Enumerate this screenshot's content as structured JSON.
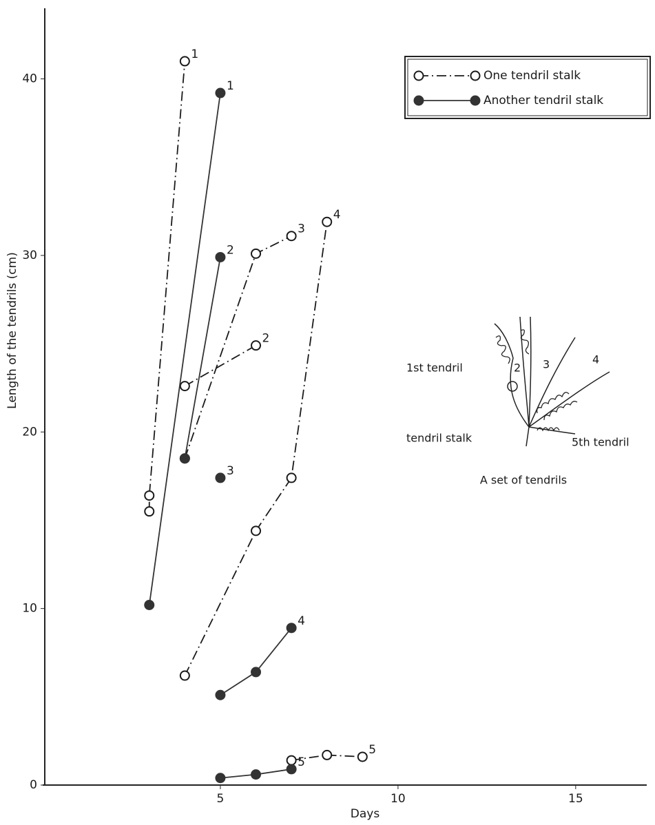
{
  "chart_data": {
    "type": "line",
    "x_label": "Days",
    "y_label": "Length of the tendrils (cm)",
    "xlim": [
      0,
      17
    ],
    "xticks": [
      5,
      10,
      15
    ],
    "ylim": [
      0,
      44
    ],
    "yticks": [
      0,
      10,
      20,
      30,
      40
    ],
    "grid": false,
    "legend": "upper right",
    "series": [
      {
        "name": "One tendril stalk",
        "color": "#1a1a1a",
        "marker": "open",
        "linestyle": "dashdot",
        "tendrils": [
          {
            "label": "1",
            "x": [
              3,
              3,
              4
            ],
            "values": [
              15.5,
              16.4,
              41
            ]
          },
          {
            "label": "2",
            "x": [
              4,
              6
            ],
            "values": [
              22.6,
              24.9
            ]
          },
          {
            "label": "3",
            "x": [
              4,
              6,
              7
            ],
            "values": [
              18.5,
              30.1,
              31.1
            ]
          },
          {
            "label": "4",
            "x": [
              4,
              6,
              7,
              8
            ],
            "values": [
              6.2,
              14.4,
              17.4,
              31.9
            ]
          },
          {
            "label": "5",
            "x": [
              7,
              8,
              9
            ],
            "values": [
              1.4,
              1.7,
              1.6
            ]
          }
        ]
      },
      {
        "name": "Another tendril stalk",
        "color": "#333333",
        "marker": "filled",
        "linestyle": "solid",
        "tendrils": [
          {
            "label": "1",
            "x": [
              3,
              5
            ],
            "values": [
              10.2,
              39.2
            ]
          },
          {
            "label": "2",
            "x": [
              4,
              5
            ],
            "values": [
              18.5,
              29.9
            ]
          },
          {
            "label": "3",
            "x": [
              5
            ],
            "values": [
              17.4
            ]
          },
          {
            "label": "4",
            "x": [
              5,
              6,
              7
            ],
            "values": [
              5.1,
              6.4,
              8.9
            ]
          },
          {
            "label": "5",
            "x": [
              5,
              6,
              7
            ],
            "values": [
              0.4,
              0.6,
              0.9
            ]
          }
        ]
      }
    ],
    "inset": {
      "title": "A set of tendrils",
      "labels": [
        "1st tendril",
        "2",
        "3",
        "4",
        "tendril stalk",
        "5th tendril"
      ]
    }
  }
}
